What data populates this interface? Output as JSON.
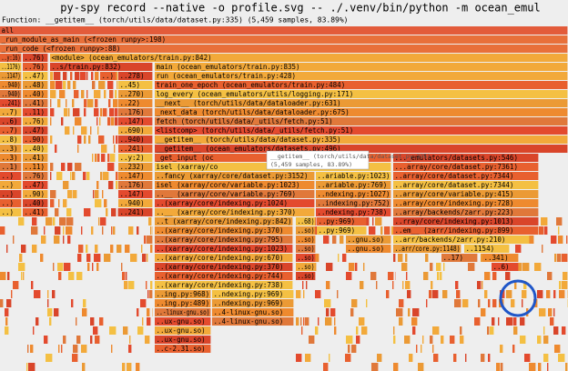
{
  "header": {
    "title": "py-spy record --native -o profile.svg -- ./.venv/bin/python -m ocean_emul",
    "function": "Function: __getitem__ (torch/utils/data/dataset.py:335) (5,459 samples, 83.89%)"
  },
  "rows": [
    [
      "all"
    ],
    [
      "_run_module_as_main (<frozen runpy>:198)"
    ],
    [
      "_run_code (<frozen runpy>:88)"
    ],
    [
      "..y:16)",
      "..76)",
      "<module> (ocean_emulators/train.py:842)"
    ],
    [
      "..1176)",
      "..76)",
      "..s/train.py:832)",
      "main (ocean_emulators/train.py:835)"
    ],
    [
      "..1147)",
      "..47)",
      "..)",
      "..278)",
      "run (ocean_emulators/train.py:428)"
    ],
    [
      "..940)",
      "..48)",
      "..45)",
      "train_one_epoch (ocean_emulators/train.py:484)"
    ],
    [
      "..940)",
      "..40)",
      "..270)",
      "log_every (ocean_emulators/utils/logging.py:171)"
    ],
    [
      "..241)",
      "..41)",
      "..22)",
      "__next__ (torch/utils/data/dataloader.py:631)"
    ],
    [
      "..7)",
      "..11)",
      "..176)",
      "_next_data (torch/utils/data/dataloader.py:675)"
    ],
    [
      "..6)",
      "..76)",
      "..147)",
      "fetch (torch/utils/data/_utils/fetch.py:51)"
    ],
    [
      "..7)",
      "..47)",
      "..690)",
      "<listcomp> (torch/utils/data/_utils/fetch.py:51)"
    ],
    [
      "..8)",
      "..90)",
      "..940)",
      "__getitem__ (torch/utils/data/dataset.py:335)"
    ],
    [
      "..3)",
      "..40)",
      "..241)",
      "__getitem__ (ocean_emulators/datasets.py:496)"
    ],
    [
      "..3)",
      "..41)",
      "..y:2)",
      "_get_input (oc",
      "..._emulators/datasets.py:546)"
    ],
    [
      "..1)",
      "..11)",
      "..232)",
      "isel (xarray/co",
      "...array/core/dataset.py:7361)"
    ],
    [
      "..)",
      "..76)",
      "..147)",
      "..fancy (xarray/core/dataset.py:3152)",
      "..ariable.py:1023)",
      "..array/core/dataset.py:7344)"
    ],
    [
      "..)",
      "..47)",
      "..176)",
      "isel (xarray/core/variable.py:1023)",
      "..ariable.py:769)",
      "..array/core/dataset.py:7344)"
    ],
    [
      "..)",
      "..90)",
      "..147)",
      "..__ (xarray/core/variable.py:769)",
      "..ndexing.py:1027)",
      "..array/core/variable.py:415)"
    ],
    [
      "..)",
      "..40)",
      "..940)",
      "..(xarray/core/indexing.py:1024)",
      "..indexing.py:752)",
      "..array/core/indexing.py:728)"
    ],
    [
      "..)",
      "..41)",
      "..241)",
      "..__ (xarray/core/indexing.py:370)",
      "..ndexing.py:738)",
      "..array/backends/zarr.py:223)"
    ],
    [
      "..t (xarray/core/indexing.py:842)",
      "..68)",
      "..py:969)",
      "..rray/core/indexing.py:1013)"
    ],
    [
      "..(xarray/core/indexing.py:370)",
      "..so)",
      "..py:969)",
      "..em__ (zarr/indexing.py:899)"
    ],
    [
      "..(xarray/core/indexing.py:795)",
      "..so)",
      "..gnu.so)",
      "..arr/backends/zarr.py:210)"
    ],
    [
      "..(xarray/core/indexing.py:1023)",
      "..so)",
      "..gnu.so)",
      "..arr/core.py:1148)",
      "..1154)"
    ],
    [
      "..(xarray/core/indexing.py:670)",
      "..so)",
      "..17)",
      "..341)"
    ],
    [
      "..(xarray/core/indexing.py:370)",
      "..so)",
      "..6)"
    ],
    [
      "..(xarray/core/indexing.py:744)",
      "..so)"
    ],
    [
      "..(xarray/core/indexing.py:738)"
    ],
    [
      "..ing.py:968)",
      "..ndexing.py:969)"
    ],
    [
      "..ing.py:489)",
      "..ndexing.py:969)"
    ],
    [
      "..-linux-gnu.so)",
      "..4-linux-gnu.so)"
    ],
    [
      "..ux-gnu.so)",
      "..4-linux-gnu.so)"
    ],
    [
      "..ux-gnu.so)"
    ],
    [
      "..ux-gnu.so)"
    ],
    [
      "..c-2.31.so)"
    ]
  ],
  "tooltip": {
    "name": "__getitem__ (torch/utils/data/dataset.py:335)",
    "samples": "(5,459 samples, 83.89%)"
  }
}
